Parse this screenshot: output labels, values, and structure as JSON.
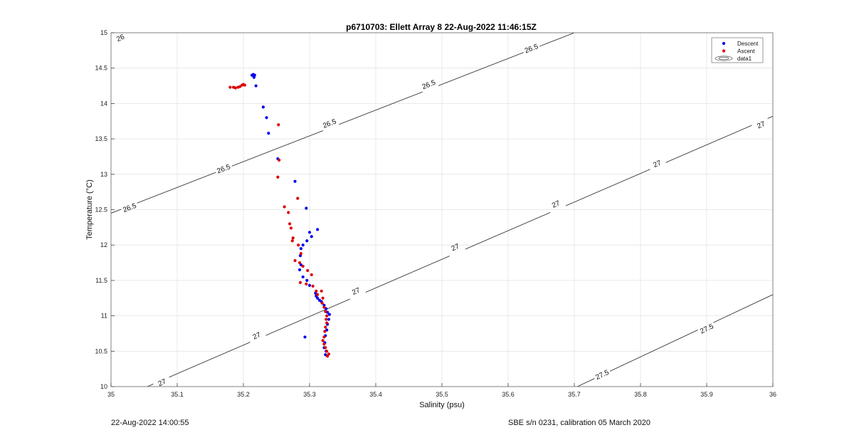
{
  "footer": {
    "timestamp": "22-Aug-2022 14:00:55",
    "sensor_info": "SBE s/n 0231, calibration 05 March 2020"
  },
  "chart_data": {
    "type": "scatter",
    "title": "p6710703: Ellett Array 8 22-Aug-2022 11:46:15Z",
    "xlabel": "Salinity (psu)",
    "ylabel": "Temperature (°C)",
    "xlim": [
      35,
      36
    ],
    "ylim": [
      10,
      15
    ],
    "xticks": [
      "35",
      "35.1",
      "35.2",
      "35.3",
      "35.4",
      "35.5",
      "35.6",
      "35.7",
      "35.8",
      "35.9",
      "36"
    ],
    "yticks": [
      "10",
      "10.5",
      "11",
      "11.5",
      "12",
      "12.5",
      "13",
      "13.5",
      "14",
      "14.5",
      "15"
    ],
    "grid": true,
    "legend_position": "top-right",
    "legend": [
      "Descent",
      "Ascent",
      "data1"
    ],
    "series": [
      {
        "name": "Descent",
        "color": "#0000ee",
        "points": [
          [
            35.213,
            14.4
          ],
          [
            35.215,
            14.41
          ],
          [
            35.217,
            14.4
          ],
          [
            35.216,
            14.37
          ],
          [
            35.219,
            14.25
          ],
          [
            35.23,
            13.95
          ],
          [
            35.235,
            13.8
          ],
          [
            35.238,
            13.58
          ],
          [
            35.252,
            13.22
          ],
          [
            35.278,
            12.9
          ],
          [
            35.295,
            12.52
          ],
          [
            35.312,
            12.22
          ],
          [
            35.3,
            12.18
          ],
          [
            35.303,
            12.12
          ],
          [
            35.296,
            12.06
          ],
          [
            35.29,
            12.0
          ],
          [
            35.287,
            11.95
          ],
          [
            35.286,
            11.85
          ],
          [
            35.287,
            11.72
          ],
          [
            35.285,
            11.65
          ],
          [
            35.29,
            11.55
          ],
          [
            35.296,
            11.5
          ],
          [
            35.3,
            11.43
          ],
          [
            35.309,
            11.32
          ],
          [
            35.31,
            11.28
          ],
          [
            35.312,
            11.25
          ],
          [
            35.315,
            11.22
          ],
          [
            35.318,
            11.2
          ],
          [
            35.322,
            11.15
          ],
          [
            35.325,
            11.1
          ],
          [
            35.327,
            11.05
          ],
          [
            35.33,
            11.02
          ],
          [
            35.329,
            10.95
          ],
          [
            35.327,
            10.88
          ],
          [
            35.326,
            10.8
          ],
          [
            35.324,
            10.72
          ],
          [
            35.323,
            10.62
          ],
          [
            35.322,
            10.55
          ],
          [
            35.325,
            10.5
          ],
          [
            35.324,
            10.45
          ],
          [
            35.293,
            10.7
          ]
        ]
      },
      {
        "name": "Ascent",
        "color": "#dd0000",
        "points": [
          [
            35.18,
            14.23
          ],
          [
            35.185,
            14.23
          ],
          [
            35.188,
            14.22
          ],
          [
            35.192,
            14.23
          ],
          [
            35.195,
            14.24
          ],
          [
            35.198,
            14.26
          ],
          [
            35.2,
            14.27
          ],
          [
            35.202,
            14.26
          ],
          [
            35.253,
            13.7
          ],
          [
            35.254,
            13.2
          ],
          [
            35.252,
            12.96
          ],
          [
            35.282,
            12.66
          ],
          [
            35.262,
            12.54
          ],
          [
            35.268,
            12.46
          ],
          [
            35.27,
            12.3
          ],
          [
            35.272,
            12.24
          ],
          [
            35.275,
            12.1
          ],
          [
            35.274,
            12.06
          ],
          [
            35.283,
            12.0
          ],
          [
            35.287,
            11.88
          ],
          [
            35.278,
            11.78
          ],
          [
            35.285,
            11.75
          ],
          [
            35.29,
            11.7
          ],
          [
            35.297,
            11.64
          ],
          [
            35.303,
            11.58
          ],
          [
            35.286,
            11.47
          ],
          [
            35.295,
            11.45
          ],
          [
            35.305,
            11.42
          ],
          [
            35.31,
            11.35
          ],
          [
            35.318,
            11.35
          ],
          [
            35.312,
            11.3
          ],
          [
            35.32,
            11.25
          ],
          [
            35.319,
            11.18
          ],
          [
            35.322,
            11.12
          ],
          [
            35.324,
            11.06
          ],
          [
            35.326,
            11.0
          ],
          [
            35.325,
            10.95
          ],
          [
            35.326,
            10.9
          ],
          [
            35.324,
            10.84
          ],
          [
            35.323,
            10.78
          ],
          [
            35.322,
            10.7
          ],
          [
            35.32,
            10.65
          ],
          [
            35.322,
            10.6
          ],
          [
            35.324,
            10.55
          ],
          [
            35.326,
            10.5
          ],
          [
            35.329,
            10.46
          ],
          [
            35.327,
            10.43
          ]
        ]
      }
    ],
    "contours": [
      {
        "level": 26,
        "label": "26",
        "points": [
          [
            35.0,
            14.95
          ],
          [
            35.04,
            15.12
          ]
        ],
        "label_positions": [
          [
            35.014,
            14.93
          ]
        ]
      },
      {
        "level": 26.5,
        "label": "26.5",
        "points": [
          [
            35.0,
            12.45
          ],
          [
            35.7,
            15.0
          ]
        ],
        "label_positions": [
          [
            35.028,
            12.53
          ],
          [
            35.17,
            13.08
          ],
          [
            35.33,
            13.72
          ],
          [
            35.48,
            14.27
          ],
          [
            35.635,
            14.78
          ]
        ]
      },
      {
        "level": 27,
        "label": "27",
        "points": [
          [
            35.05,
            9.98
          ],
          [
            36.0,
            13.82
          ]
        ],
        "label_positions": [
          [
            35.077,
            10.06
          ],
          [
            35.22,
            10.72
          ],
          [
            35.37,
            11.35
          ],
          [
            35.52,
            11.97
          ],
          [
            35.672,
            12.58
          ],
          [
            35.825,
            13.15
          ],
          [
            35.982,
            13.7
          ]
        ]
      },
      {
        "level": 27.5,
        "label": "27.5",
        "points": [
          [
            35.7,
            9.98
          ],
          [
            36.0,
            11.3
          ]
        ],
        "label_positions": [
          [
            35.742,
            10.17
          ],
          [
            35.9,
            10.82
          ]
        ]
      }
    ]
  }
}
